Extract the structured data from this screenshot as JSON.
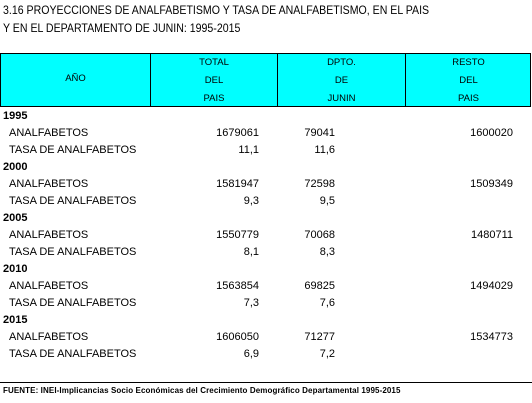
{
  "title": {
    "line1": "3.16  PROYECCIONES DE ANALFABETISMO Y TASA DE ANALFABETISMO, EN EL PAIS",
    "line2": "Y EN EL DEPARTAMENTO DE JUNIN: 1995-2015"
  },
  "header": {
    "year_label": "AÑO",
    "total": [
      "TOTAL",
      "DEL",
      "PAIS"
    ],
    "dpto": [
      "DPTO.",
      "DE",
      "JUNIN"
    ],
    "resto": [
      "RESTO",
      "DEL",
      "PAIS"
    ]
  },
  "rows": [
    {
      "year": "1995",
      "analf": {
        "label": "ANALFABETOS",
        "total": "1679061",
        "dpto": "79041",
        "resto": "1600020"
      },
      "tasa": {
        "label": "TASA DE ANALFABETOS",
        "total": "11,1",
        "dpto": "11,6"
      }
    },
    {
      "year": "2000",
      "analf": {
        "label": "ANALFABETOS",
        "total": "1581947",
        "dpto": "72598",
        "resto": "1509349"
      },
      "tasa": {
        "label": "TASA DE ANALFABETOS",
        "total": "9,3",
        "dpto": "9,5"
      }
    },
    {
      "year": "2005",
      "analf": {
        "label": "ANALFABETOS",
        "total": "1550779",
        "dpto": "70068",
        "resto": "1480711"
      },
      "tasa": {
        "label": "TASA DE ANALFABETOS",
        "total": "8,1",
        "dpto": "8,3"
      }
    },
    {
      "year": "2010",
      "analf": {
        "label": "ANALFABETOS",
        "total": "1563854",
        "dpto": "69825",
        "resto": "1494029"
      },
      "tasa": {
        "label": "TASA DE ANALFABETOS",
        "total": "7,3",
        "dpto": "7,6"
      }
    },
    {
      "year": "2015",
      "analf": {
        "label": "ANALFABETOS",
        "total": "1606050",
        "dpto": "71277",
        "resto": "1534773"
      },
      "tasa": {
        "label": "TASA DE ANALFABETOS",
        "total": "6,9",
        "dpto": "7,2"
      }
    }
  ],
  "source": "FUENTE: INEI-Implicancias Socio Económicas del Crecimiento Demográfico Departamental 1995-2015",
  "colors": {
    "header_bg": "#00ffff"
  }
}
